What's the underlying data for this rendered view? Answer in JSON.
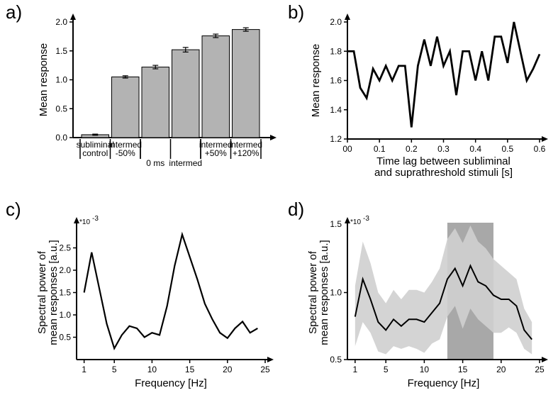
{
  "panelA": {
    "label": "a)",
    "type": "bar",
    "ylabel": "Mean response",
    "ylim": [
      0,
      2.0
    ],
    "yticks": [
      0,
      0.5,
      1.0,
      1.5,
      2.0
    ],
    "bar_color": "#b3b3b3",
    "bar_stroke": "#000000",
    "background": "#ffffff",
    "categories": [
      "subliminal\ncontrol",
      "intermed\n-50%",
      "0 ms",
      "intermed",
      "intermed\n+50%",
      "intermed\n+120%"
    ],
    "values": [
      0.05,
      1.05,
      1.22,
      1.52,
      1.76,
      1.87
    ],
    "errors": [
      0.01,
      0.02,
      0.03,
      0.04,
      0.03,
      0.03
    ]
  },
  "panelB": {
    "label": "b)",
    "type": "line",
    "ylabel": "Mean response",
    "xlabel": "Time lag between subliminal\nand suprathreshold stimuli [s]",
    "ylim": [
      1.2,
      2.0
    ],
    "yticks": [
      1.2,
      1.4,
      1.6,
      1.8,
      2.0
    ],
    "xlim": [
      0,
      0.6
    ],
    "xticks": [
      0,
      0.1,
      0.2,
      0.3,
      0.4,
      0.5,
      0.6
    ],
    "line_color": "#000000",
    "line_width": 2.8,
    "x": [
      0,
      0.02,
      0.04,
      0.06,
      0.08,
      0.1,
      0.12,
      0.14,
      0.16,
      0.18,
      0.2,
      0.22,
      0.24,
      0.26,
      0.28,
      0.3,
      0.32,
      0.34,
      0.36,
      0.38,
      0.4,
      0.42,
      0.44,
      0.46,
      0.48,
      0.5,
      0.52,
      0.54,
      0.56,
      0.58,
      0.6
    ],
    "y": [
      1.8,
      1.8,
      1.55,
      1.48,
      1.68,
      1.6,
      1.7,
      1.6,
      1.7,
      1.7,
      1.28,
      1.7,
      1.88,
      1.7,
      1.9,
      1.7,
      1.8,
      1.5,
      1.8,
      1.8,
      1.6,
      1.8,
      1.6,
      1.9,
      1.9,
      1.72,
      2.0,
      1.8,
      1.6,
      1.68,
      1.78
    ]
  },
  "panelC": {
    "label": "c)",
    "type": "line",
    "ylabel": "Spectral power of\nmean responses [a.u.]",
    "exp_note": "*10",
    "exp_sup": "-3",
    "ylim": [
      0,
      3.0
    ],
    "yticks": [
      0.5,
      1.0,
      1.5,
      2.0,
      2.5
    ],
    "xlim": [
      0,
      25
    ],
    "xticks": [
      1,
      5,
      10,
      15,
      20,
      25
    ],
    "line_color": "#000000",
    "line_width": 2.2,
    "x": [
      1,
      2,
      3,
      4,
      5,
      6,
      7,
      8,
      9,
      10,
      11,
      12,
      13,
      14,
      15,
      16,
      17,
      18,
      19,
      20,
      21,
      22,
      23,
      24
    ],
    "y": [
      1.5,
      2.4,
      1.6,
      0.8,
      0.25,
      0.55,
      0.75,
      0.7,
      0.5,
      0.6,
      0.55,
      1.2,
      2.1,
      2.8,
      2.3,
      1.8,
      1.25,
      0.9,
      0.6,
      0.48,
      0.7,
      0.85,
      0.6,
      0.7
    ]
  },
  "panelD": {
    "label": "d)",
    "type": "line_band",
    "ylabel": "Spectral power of\nmean responses [a.u.]",
    "exp_note": "1.5",
    "exp_note2": "*10",
    "exp_sup": "-3",
    "ylim": [
      0.5,
      1.5
    ],
    "yticks": [
      0.5,
      1.0
    ],
    "xlim": [
      0,
      25
    ],
    "xticks": [
      1,
      5,
      10,
      15,
      20,
      25
    ],
    "xlabel": "Frequency [Hz]",
    "highlight_color": "#a8a8a8",
    "highlight_x": [
      13,
      19
    ],
    "band_color": "#cfcfcf",
    "line_color": "#000000",
    "line_width": 2,
    "x": [
      1,
      2,
      3,
      4,
      5,
      6,
      7,
      8,
      9,
      10,
      11,
      12,
      13,
      14,
      15,
      16,
      17,
      18,
      19,
      20,
      21,
      22,
      23,
      24
    ],
    "y": [
      0.82,
      1.1,
      0.95,
      0.78,
      0.72,
      0.8,
      0.75,
      0.8,
      0.8,
      0.78,
      0.85,
      0.92,
      1.1,
      1.18,
      1.05,
      1.2,
      1.08,
      1.05,
      0.98,
      0.95,
      0.95,
      0.9,
      0.72,
      0.65
    ],
    "y_lo": [
      0.6,
      0.78,
      0.7,
      0.56,
      0.54,
      0.6,
      0.58,
      0.6,
      0.58,
      0.55,
      0.62,
      0.65,
      0.82,
      0.9,
      0.73,
      0.88,
      0.8,
      0.75,
      0.7,
      0.7,
      0.74,
      0.7,
      0.58,
      0.54
    ],
    "y_hi": [
      1.05,
      1.38,
      1.22,
      1.0,
      0.92,
      1.02,
      0.95,
      1.02,
      1.02,
      1.0,
      1.08,
      1.18,
      1.4,
      1.48,
      1.37,
      1.5,
      1.38,
      1.33,
      1.25,
      1.2,
      1.15,
      1.1,
      0.88,
      0.78
    ]
  },
  "panelC_xlabel": "Frequency [Hz]",
  "panelD_xlabel": "Frequency [Hz]"
}
